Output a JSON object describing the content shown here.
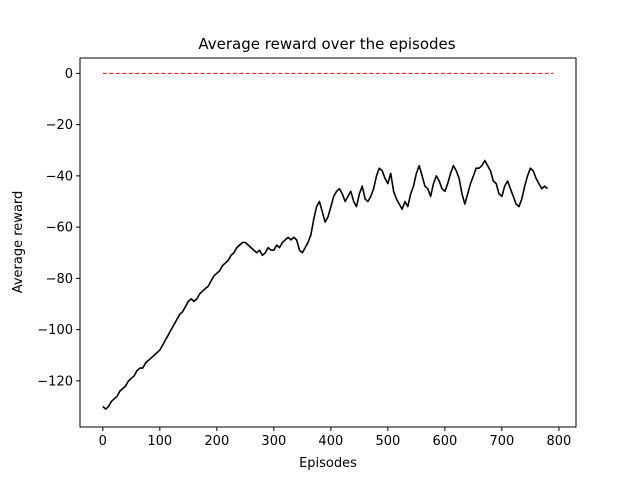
{
  "chart_data": {
    "type": "line",
    "title": "Average reward over the episodes",
    "xlabel": "Episodes",
    "ylabel": "Average reward",
    "xlim": [
      -40,
      830
    ],
    "ylim": [
      -138,
      6
    ],
    "xticks": [
      0,
      100,
      200,
      300,
      400,
      500,
      600,
      700,
      800
    ],
    "yticks": [
      0,
      -20,
      -40,
      -60,
      -80,
      -100,
      -120
    ],
    "grid": false,
    "legend": "none",
    "series": [
      {
        "color": "#000000",
        "style": "solid",
        "points": [
          [
            0,
            -130
          ],
          [
            5,
            -131
          ],
          [
            10,
            -130
          ],
          [
            15,
            -128
          ],
          [
            20,
            -127
          ],
          [
            25,
            -126
          ],
          [
            30,
            -124
          ],
          [
            35,
            -123
          ],
          [
            40,
            -122
          ],
          [
            45,
            -120
          ],
          [
            50,
            -119
          ],
          [
            55,
            -118
          ],
          [
            60,
            -116
          ],
          [
            65,
            -115
          ],
          [
            70,
            -115
          ],
          [
            75,
            -113
          ],
          [
            80,
            -112
          ],
          [
            85,
            -111
          ],
          [
            90,
            -110
          ],
          [
            95,
            -109
          ],
          [
            100,
            -108
          ],
          [
            105,
            -106
          ],
          [
            110,
            -104
          ],
          [
            115,
            -102
          ],
          [
            120,
            -100
          ],
          [
            125,
            -98
          ],
          [
            130,
            -96
          ],
          [
            135,
            -94
          ],
          [
            140,
            -93
          ],
          [
            145,
            -91
          ],
          [
            150,
            -89
          ],
          [
            155,
            -88
          ],
          [
            160,
            -89
          ],
          [
            165,
            -88
          ],
          [
            170,
            -86
          ],
          [
            175,
            -85
          ],
          [
            180,
            -84
          ],
          [
            185,
            -83
          ],
          [
            190,
            -81
          ],
          [
            195,
            -79
          ],
          [
            200,
            -78
          ],
          [
            205,
            -77
          ],
          [
            210,
            -75
          ],
          [
            215,
            -74
          ],
          [
            220,
            -73
          ],
          [
            225,
            -71
          ],
          [
            230,
            -70
          ],
          [
            235,
            -68
          ],
          [
            240,
            -67
          ],
          [
            245,
            -66
          ],
          [
            250,
            -66
          ],
          [
            255,
            -67
          ],
          [
            260,
            -68
          ],
          [
            265,
            -69
          ],
          [
            270,
            -70
          ],
          [
            275,
            -69
          ],
          [
            280,
            -71
          ],
          [
            285,
            -70
          ],
          [
            290,
            -68
          ],
          [
            295,
            -69
          ],
          [
            300,
            -69
          ],
          [
            305,
            -67
          ],
          [
            310,
            -68
          ],
          [
            315,
            -66
          ],
          [
            320,
            -65
          ],
          [
            325,
            -64
          ],
          [
            330,
            -65
          ],
          [
            335,
            -64
          ],
          [
            340,
            -65
          ],
          [
            345,
            -69
          ],
          [
            350,
            -70
          ],
          [
            355,
            -68
          ],
          [
            360,
            -66
          ],
          [
            365,
            -63
          ],
          [
            370,
            -57
          ],
          [
            375,
            -52
          ],
          [
            380,
            -50
          ],
          [
            385,
            -54
          ],
          [
            390,
            -58
          ],
          [
            395,
            -56
          ],
          [
            400,
            -52
          ],
          [
            405,
            -48
          ],
          [
            410,
            -46
          ],
          [
            415,
            -45
          ],
          [
            420,
            -47
          ],
          [
            425,
            -50
          ],
          [
            430,
            -48
          ],
          [
            435,
            -46
          ],
          [
            440,
            -50
          ],
          [
            445,
            -52
          ],
          [
            450,
            -47
          ],
          [
            455,
            -44
          ],
          [
            460,
            -49
          ],
          [
            465,
            -50
          ],
          [
            470,
            -48
          ],
          [
            475,
            -45
          ],
          [
            480,
            -40
          ],
          [
            485,
            -37
          ],
          [
            490,
            -38
          ],
          [
            495,
            -41
          ],
          [
            500,
            -43
          ],
          [
            505,
            -39
          ],
          [
            510,
            -46
          ],
          [
            515,
            -49
          ],
          [
            520,
            -51
          ],
          [
            525,
            -53
          ],
          [
            530,
            -50
          ],
          [
            535,
            -52
          ],
          [
            540,
            -47
          ],
          [
            545,
            -44
          ],
          [
            550,
            -39
          ],
          [
            555,
            -36
          ],
          [
            560,
            -40
          ],
          [
            565,
            -44
          ],
          [
            570,
            -45
          ],
          [
            575,
            -48
          ],
          [
            580,
            -43
          ],
          [
            585,
            -40
          ],
          [
            590,
            -42
          ],
          [
            595,
            -45
          ],
          [
            600,
            -46
          ],
          [
            605,
            -43
          ],
          [
            610,
            -39
          ],
          [
            615,
            -36
          ],
          [
            620,
            -38
          ],
          [
            625,
            -41
          ],
          [
            630,
            -47
          ],
          [
            635,
            -51
          ],
          [
            640,
            -47
          ],
          [
            645,
            -43
          ],
          [
            650,
            -40
          ],
          [
            655,
            -37
          ],
          [
            660,
            -37
          ],
          [
            665,
            -36
          ],
          [
            670,
            -34
          ],
          [
            675,
            -36
          ],
          [
            680,
            -38
          ],
          [
            685,
            -42
          ],
          [
            690,
            -43
          ],
          [
            695,
            -47
          ],
          [
            700,
            -48
          ],
          [
            705,
            -44
          ],
          [
            710,
            -42
          ],
          [
            715,
            -45
          ],
          [
            720,
            -48
          ],
          [
            725,
            -51
          ],
          [
            730,
            -52
          ],
          [
            735,
            -49
          ],
          [
            740,
            -44
          ],
          [
            745,
            -40
          ],
          [
            750,
            -37
          ],
          [
            755,
            -38
          ],
          [
            760,
            -41
          ],
          [
            765,
            -43
          ],
          [
            770,
            -45
          ],
          [
            775,
            -44
          ],
          [
            780,
            -45
          ]
        ]
      },
      {
        "color": "#ff0000",
        "style": "dashed",
        "points": [
          [
            0,
            0
          ],
          [
            790,
            0
          ]
        ]
      }
    ]
  }
}
